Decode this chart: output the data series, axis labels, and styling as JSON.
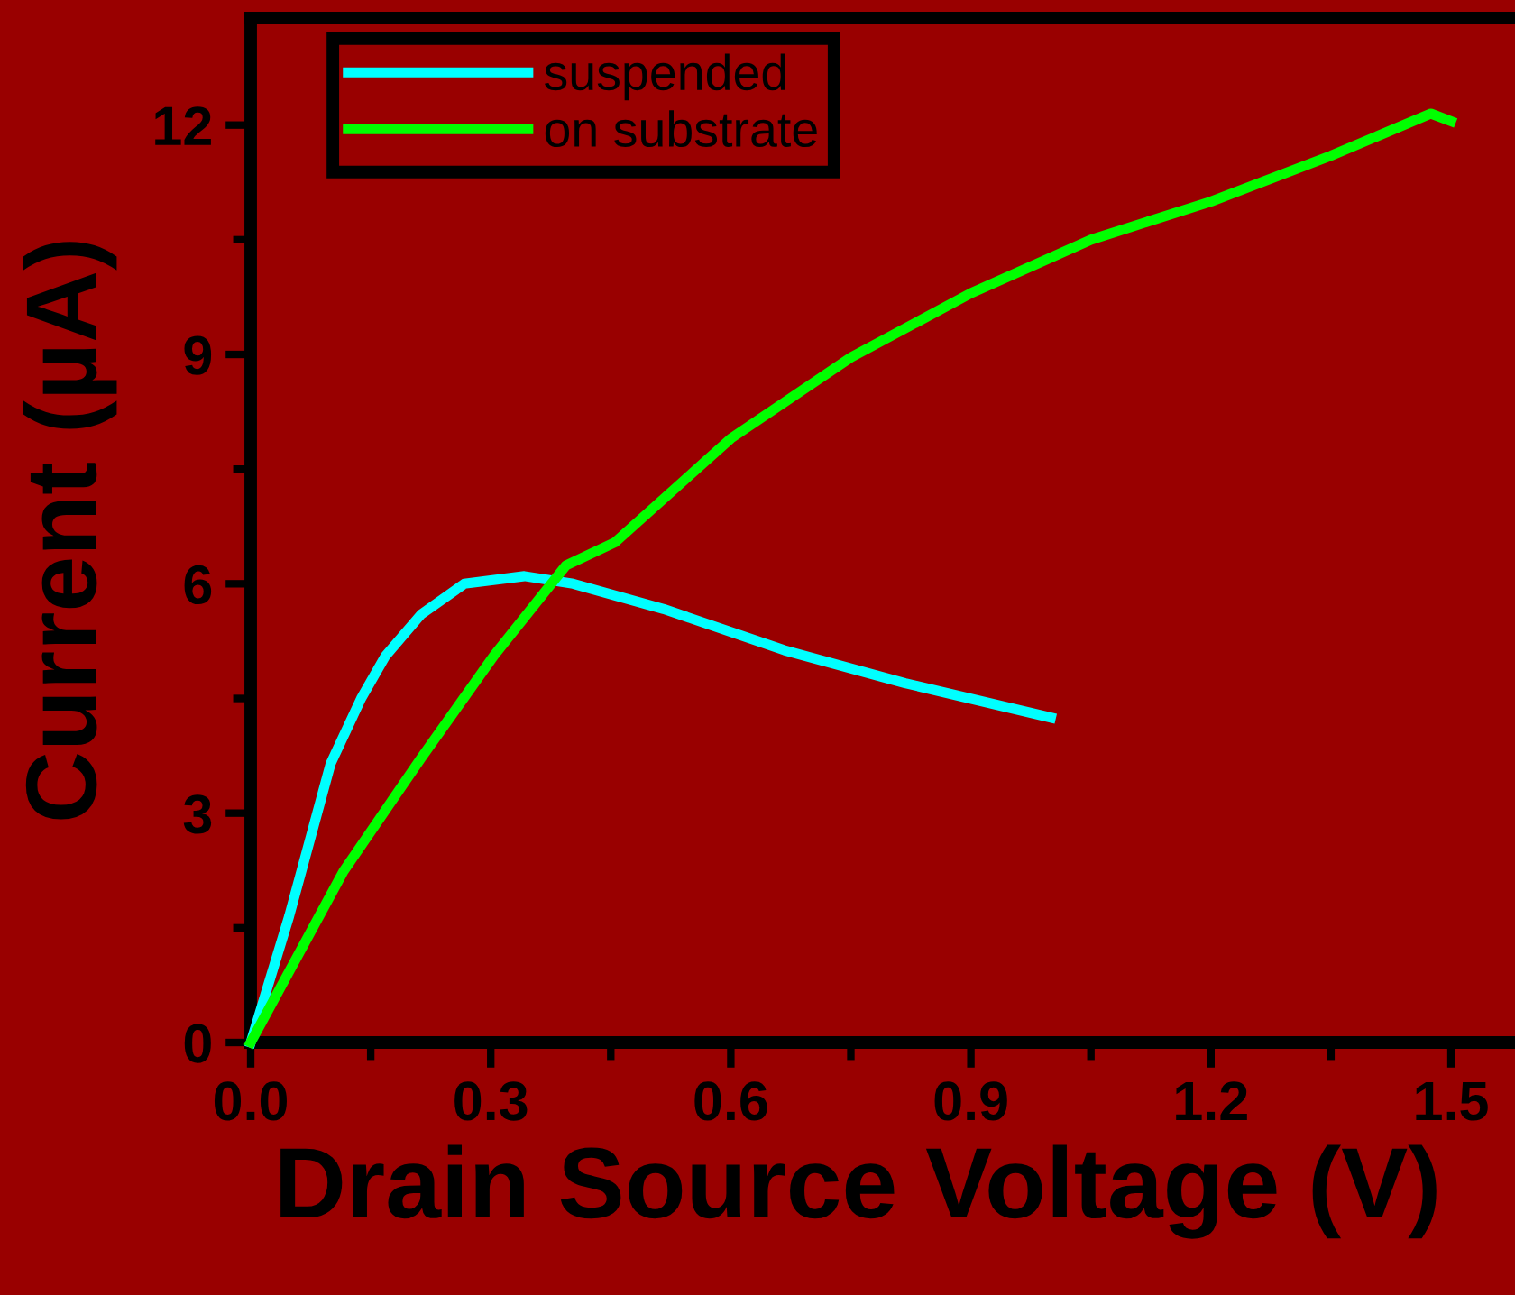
{
  "chart_data": {
    "type": "line",
    "xlabel": "Drain Source Voltage (V)",
    "ylabel": "Current (µA)",
    "xlim": [
      0,
      1.58
    ],
    "ylim": [
      0,
      13.4
    ],
    "xticks": [
      {
        "value": 0,
        "label": "0.0"
      },
      {
        "value": 0.15,
        "label": null
      },
      {
        "value": 0.3,
        "label": "0.3"
      },
      {
        "value": 0.45,
        "label": null
      },
      {
        "value": 0.6,
        "label": "0.6"
      },
      {
        "value": 0.75,
        "label": null
      },
      {
        "value": 0.9,
        "label": "0.9"
      },
      {
        "value": 1.05,
        "label": null
      },
      {
        "value": 1.2,
        "label": "1.2"
      },
      {
        "value": 1.35,
        "label": null
      },
      {
        "value": 1.5,
        "label": "1.5"
      }
    ],
    "yticks": [
      0,
      {
        "value": 1.5,
        "label": null
      },
      3,
      {
        "value": 4.5,
        "label": null
      },
      6,
      {
        "value": 7.5,
        "label": null
      },
      9,
      {
        "value": 10.5,
        "label": null
      },
      12
    ],
    "legend": "top left",
    "grid": false,
    "marker": "none",
    "line_style": "solid",
    "series": [
      {
        "name": "suspended",
        "color": "#00ffff",
        "x": [
          0,
          0.048,
          0.1,
          0.138,
          0.168,
          0.213,
          0.267,
          0.342,
          0.403,
          0.516,
          0.667,
          0.818,
          1.0
        ],
        "values": [
          0,
          1.65,
          3.65,
          4.5,
          5.05,
          5.6,
          6.0,
          6.1,
          6.0,
          5.67,
          5.13,
          4.7,
          4.25
        ]
      },
      {
        "name": "on substrate",
        "color": "#00ff00",
        "x": [
          0,
          0.116,
          0.213,
          0.304,
          0.394,
          0.455,
          0.6,
          0.75,
          0.9,
          1.05,
          1.2,
          1.35,
          1.475,
          1.5
        ],
        "values": [
          0,
          2.24,
          3.72,
          5.06,
          6.24,
          6.54,
          7.9,
          8.96,
          9.8,
          10.5,
          11.0,
          11.6,
          12.15,
          12.05
        ]
      }
    ]
  }
}
